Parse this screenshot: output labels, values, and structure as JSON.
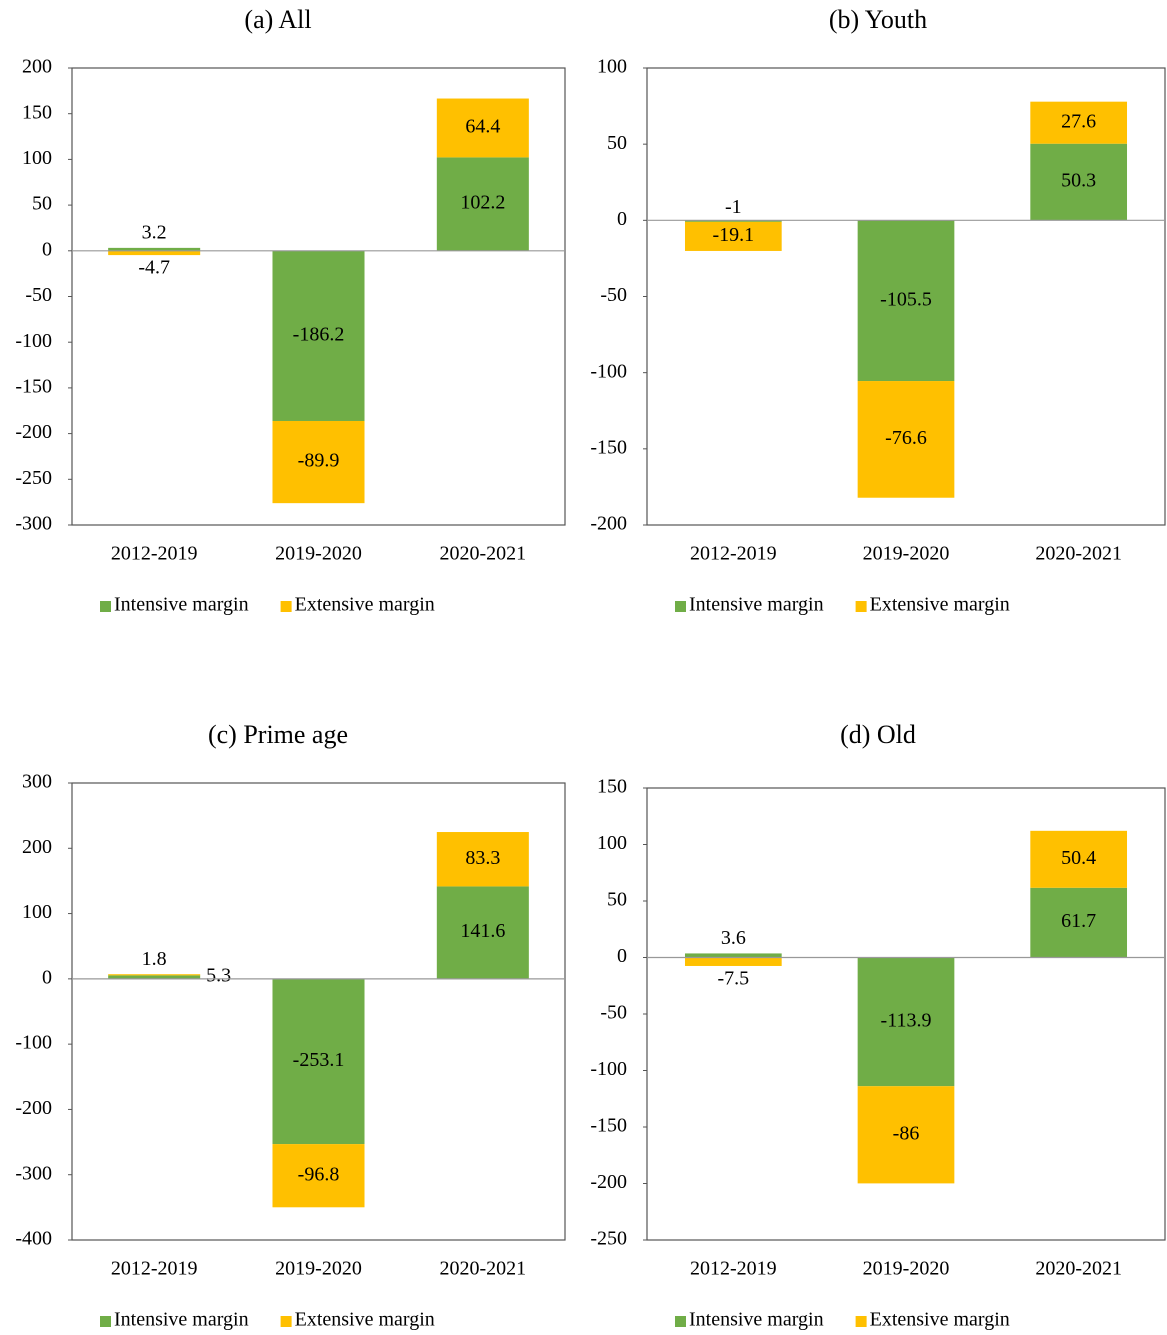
{
  "chart_data": [
    {
      "type": "bar",
      "stacked": true,
      "title": "(a) All",
      "categories": [
        "2012-2019",
        "2019-2020",
        "2020-2021"
      ],
      "series": [
        {
          "name": "Intensive margin",
          "color": "#70ad47",
          "values": [
            3.2,
            -186.2,
            102.2
          ]
        },
        {
          "name": "Extensive margin",
          "color": "#ffc000",
          "values": [
            -4.7,
            -89.9,
            64.4
          ]
        }
      ],
      "ylim": [
        -300,
        200
      ],
      "yticks": [
        -300,
        -250,
        -200,
        -150,
        -100,
        -50,
        0,
        50,
        100,
        150,
        200
      ]
    },
    {
      "type": "bar",
      "stacked": true,
      "title": "(b) Youth",
      "categories": [
        "2012-2019",
        "2019-2020",
        "2020-2021"
      ],
      "series": [
        {
          "name": "Intensive margin",
          "color": "#70ad47",
          "values": [
            -1.0,
            -105.5,
            50.3
          ]
        },
        {
          "name": "Extensive margin",
          "color": "#ffc000",
          "values": [
            -19.1,
            -76.6,
            27.6
          ]
        }
      ],
      "ylim": [
        -200,
        100
      ],
      "yticks": [
        -200,
        -150,
        -100,
        -50,
        0,
        50,
        100
      ]
    },
    {
      "type": "bar",
      "stacked": true,
      "title": "(c) Prime age",
      "categories": [
        "2012-2019",
        "2019-2020",
        "2020-2021"
      ],
      "series": [
        {
          "name": "Intensive margin",
          "color": "#70ad47",
          "values": [
            5.3,
            -253.1,
            141.6
          ]
        },
        {
          "name": "Extensive margin",
          "color": "#ffc000",
          "values": [
            1.8,
            -96.8,
            83.3
          ]
        }
      ],
      "ylim": [
        -400,
        300
      ],
      "yticks": [
        -400,
        -300,
        -200,
        -100,
        0,
        100,
        200,
        300
      ]
    },
    {
      "type": "bar",
      "stacked": true,
      "title": "(d) Old",
      "categories": [
        "2012-2019",
        "2019-2020",
        "2020-2021"
      ],
      "series": [
        {
          "name": "Intensive margin",
          "color": "#70ad47",
          "values": [
            3.6,
            -113.9,
            61.7
          ]
        },
        {
          "name": "Extensive margin",
          "color": "#ffc000",
          "values": [
            -7.5,
            -86.0,
            50.4
          ]
        }
      ],
      "ylim": [
        -250,
        150
      ],
      "yticks": [
        -250,
        -200,
        -150,
        -100,
        -50,
        0,
        50,
        100,
        150
      ]
    }
  ]
}
